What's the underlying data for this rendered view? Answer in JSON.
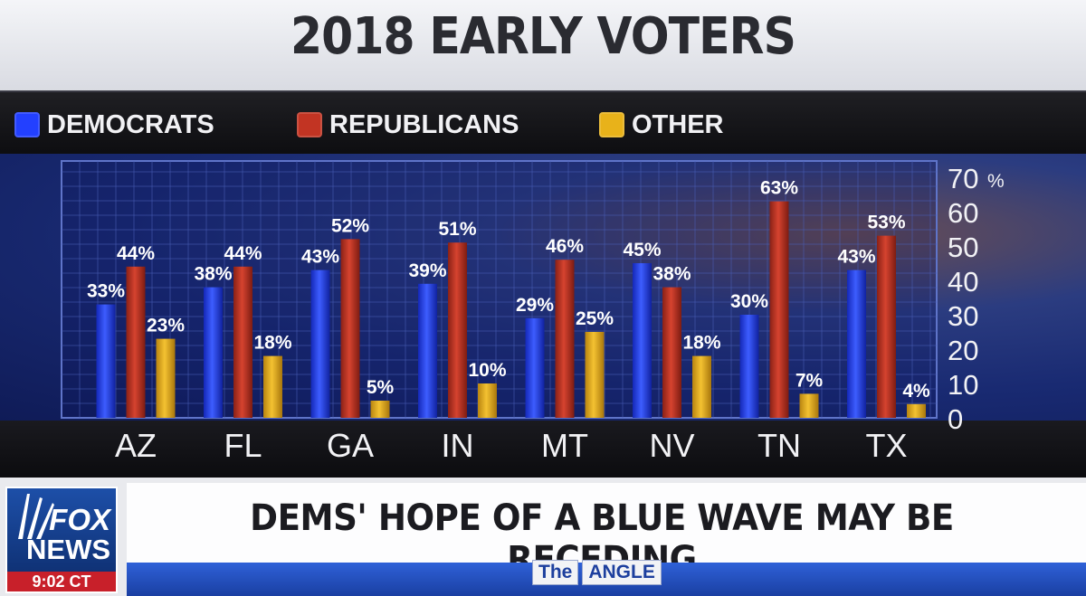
{
  "title": "2018 EARLY VOTERS",
  "legend": [
    {
      "label": "DEMOCRATS",
      "color": "#2340ff"
    },
    {
      "label": "REPUBLICANS",
      "color": "#c23423"
    },
    {
      "label": "OTHER",
      "color": "#e8b21a"
    }
  ],
  "chart_data": {
    "type": "bar",
    "categories": [
      "AZ",
      "FL",
      "GA",
      "IN",
      "MT",
      "NV",
      "TN",
      "TX"
    ],
    "series": [
      {
        "name": "DEMOCRATS",
        "color": "#2340ff",
        "values": [
          33,
          38,
          43,
          39,
          29,
          45,
          30,
          43
        ]
      },
      {
        "name": "REPUBLICANS",
        "color": "#c23423",
        "values": [
          44,
          44,
          52,
          51,
          46,
          38,
          63,
          53
        ]
      },
      {
        "name": "OTHER",
        "color": "#e8b21a",
        "values": [
          23,
          18,
          5,
          10,
          25,
          18,
          7,
          4
        ]
      }
    ],
    "ylim": [
      0,
      70
    ],
    "yticks": [
      "0",
      "10",
      "20",
      "30",
      "40",
      "50",
      "60",
      "70"
    ],
    "ytick_unit": "%",
    "value_suffix": "%",
    "y_axis_side": "right",
    "grid": true,
    "legend_position": "top"
  },
  "lower_third": {
    "headline": "DEMS' HOPE OF A BLUE WAVE MAY BE RECEDING",
    "logo_line1": "FOX",
    "logo_line2": "NEWS",
    "time": "9:02 CT",
    "show_tag_1": "The",
    "show_tag_2": "ANGLE"
  }
}
